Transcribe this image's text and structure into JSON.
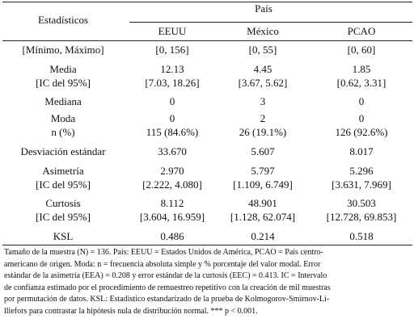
{
  "header": {
    "title": "Estadísticos",
    "group": "País",
    "columns": [
      "EEUU",
      "México",
      "PCAO"
    ]
  },
  "rows": [
    {
      "label": "[Mínimo, Máximo]",
      "values": [
        "[0, 156]",
        "[0, 55]",
        "[0, 60]"
      ]
    },
    {
      "label": "Media",
      "values": [
        "12.13",
        "4.45",
        "1.85"
      ]
    },
    {
      "label": "[IC del 95%]",
      "values": [
        "[7.03, 18.26]",
        "[3.67, 5.62]",
        "[0.62, 3.31]"
      ]
    },
    {
      "label": "Mediana",
      "values": [
        "0",
        "3",
        "0"
      ]
    },
    {
      "label": "Moda",
      "values": [
        "0",
        "2",
        "0"
      ]
    },
    {
      "label": "n (%)",
      "values": [
        "115 (84.6%)",
        "26 (19.1%)",
        "126 (92.6%)"
      ]
    },
    {
      "label": "Desviación estándar",
      "values": [
        "33.670",
        "5.607",
        "8.017"
      ]
    },
    {
      "label": "Asimetría",
      "values": [
        "2.970",
        "5.797",
        "5.296"
      ]
    },
    {
      "label": "[IC del 95%]",
      "values": [
        "[2.222, 4.080]",
        "[1.109, 6.749]",
        "[3.631, 7.969]"
      ]
    },
    {
      "label": "Curtosis",
      "values": [
        "8.112",
        "48.901",
        "30.503"
      ]
    },
    {
      "label": "[IC del 95%]",
      "values": [
        "[3.604, 16.959]",
        "[1.128, 62.074]",
        "[12.728, 69.853]"
      ]
    },
    {
      "label": "KSL",
      "values": [
        "0.486",
        "0.214",
        "0.518"
      ]
    }
  ],
  "footnote": [
    "Tamaño de la muestra (N) = 136. País: EEUU = Estados Unidos de América, PCAO = País centro-",
    "americano de origen. Moda: n = frecuencia absoluta simple y % porcentaje del valor modal. Error",
    "estándar de la asimetría (EEA) = 0.208 y error estándar de la curtosis (EEC) = 0.413. IC = Intervalo",
    "de confianza estimado por el procedimiento de remuestreo repetitivo con la creación de mil muestras",
    "por permutación de datos. KSL: Estadístico estandarizado de la prueba de Kolmogorov-Smirnov-Li-",
    "lliefors para contrastar la hipótesis nula de distribución normal. *** p < 0.001."
  ]
}
